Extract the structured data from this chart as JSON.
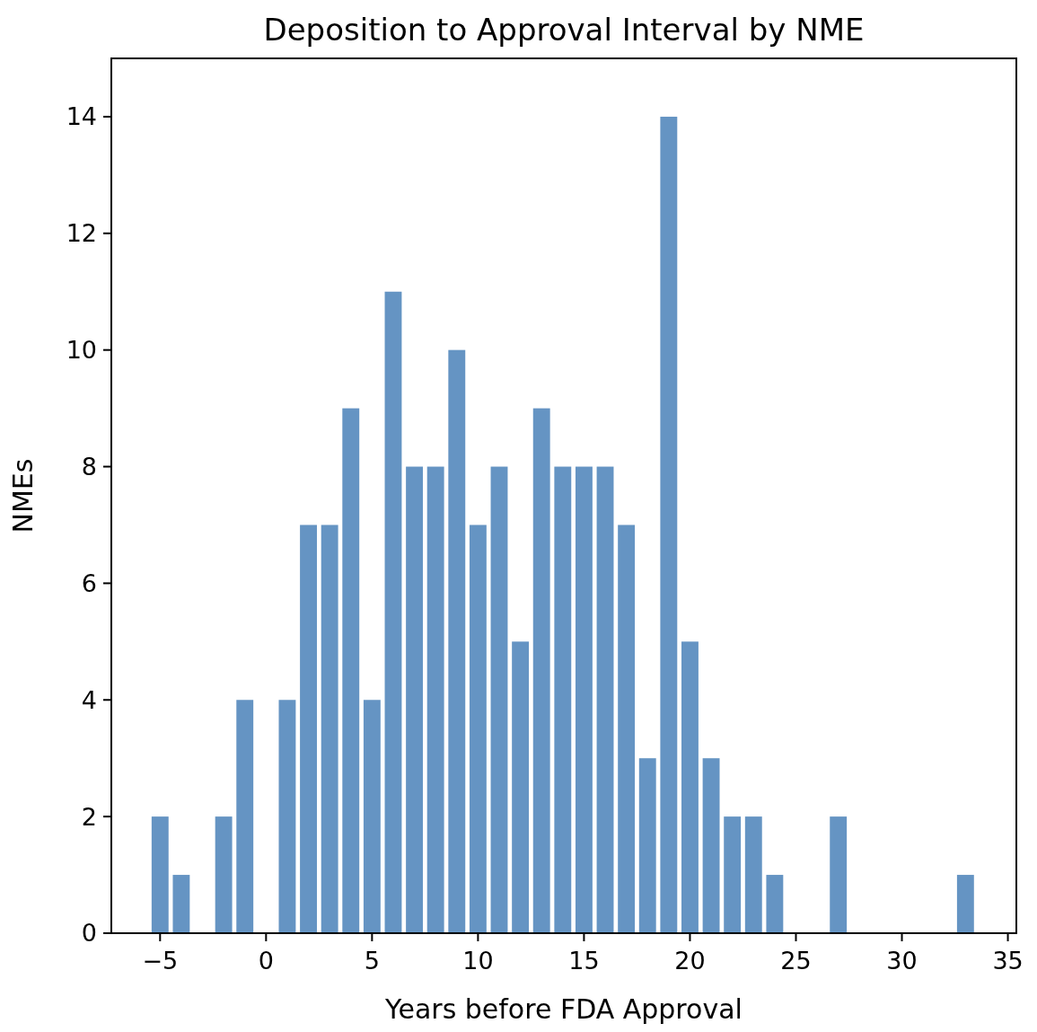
{
  "chart_data": {
    "type": "bar",
    "title": "Deposition to Approval Interval by NME",
    "xlabel": "Years before FDA Approval",
    "ylabel": "NMEs",
    "x": [
      -5,
      -4,
      -2,
      -1,
      1,
      2,
      3,
      4,
      5,
      6,
      7,
      8,
      9,
      10,
      11,
      12,
      13,
      14,
      15,
      16,
      17,
      18,
      19,
      20,
      21,
      22,
      23,
      24,
      27,
      33
    ],
    "values": [
      2,
      1,
      2,
      4,
      4,
      7,
      7,
      9,
      4,
      11,
      8,
      8,
      10,
      7,
      8,
      5,
      9,
      8,
      8,
      8,
      7,
      3,
      14,
      5,
      3,
      2,
      2,
      1,
      2,
      1
    ],
    "color": "#6594c3",
    "xlim": [
      -7.3,
      35.4
    ],
    "xticks": [
      {
        "value": -5,
        "label": "−5"
      },
      0,
      5,
      10,
      15,
      20,
      25,
      30,
      35
    ],
    "ylim": [
      0,
      15
    ],
    "yticks": [
      0,
      2,
      4,
      6,
      8,
      10,
      12,
      14
    ],
    "grid": false
  }
}
